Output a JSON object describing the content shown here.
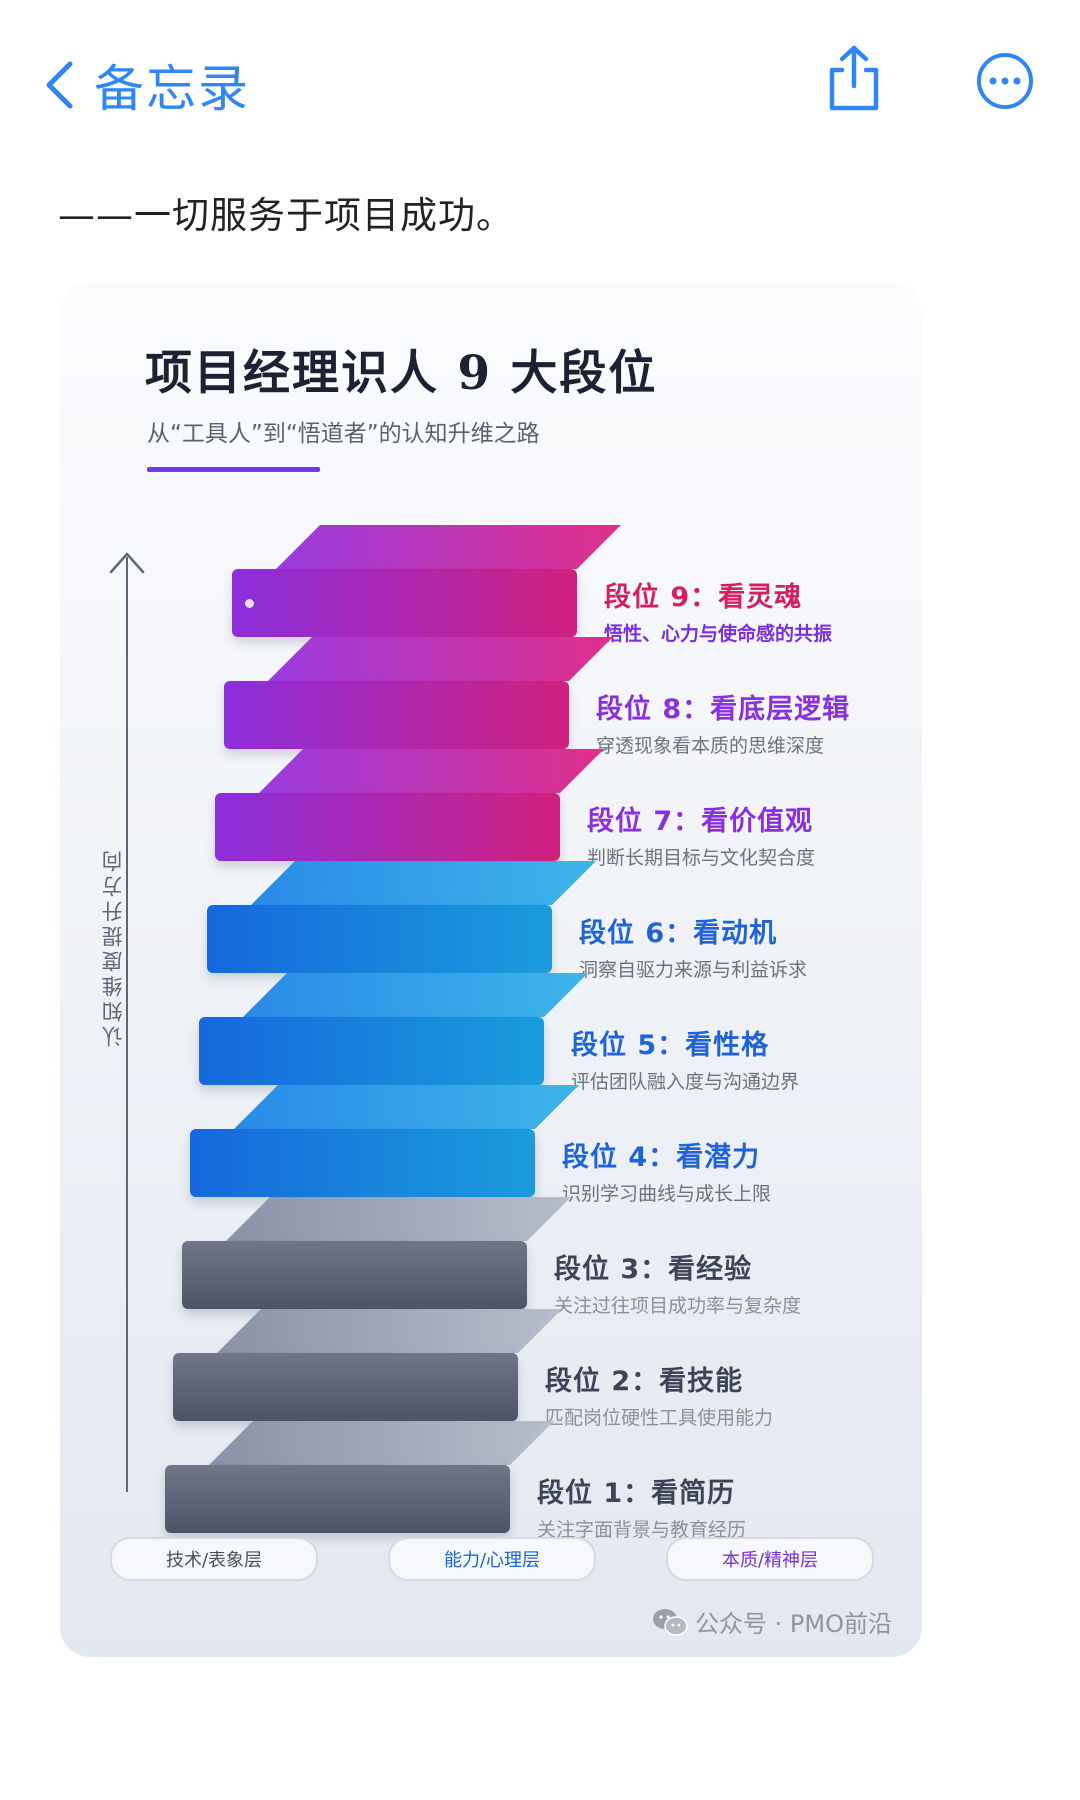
{
  "nav": {
    "back_label": "备忘录"
  },
  "note": {
    "text": "——一切服务于项目成功。"
  },
  "card": {
    "title": "项目经理识人 9 大段位",
    "subtitle": "从“工具人”到“悟道者”的认知升维之路",
    "axis_label": "认知维度提升方向",
    "steps": [
      {
        "title": "段位 9：看灵魂",
        "desc": "悟性、心力与使命感的共振",
        "tier": "purple",
        "title_color": "#d61f63",
        "desc_color": "#7a2fe0"
      },
      {
        "title": "段位 8：看底层逻辑",
        "desc": "穿透现象看本质的思维深度",
        "tier": "purple",
        "title_color": "#8a2fe0",
        "desc_color": "#6c7280"
      },
      {
        "title": "段位 7：看价值观",
        "desc": "判断长期目标与文化契合度",
        "tier": "purple",
        "title_color": "#8a2fe0",
        "desc_color": "#6c7280"
      },
      {
        "title": "段位 6：看动机",
        "desc": "洞察自驱力来源与利益诉求",
        "tier": "blue",
        "title_color": "#1e63d8",
        "desc_color": "#6c7280"
      },
      {
        "title": "段位 5：看性格",
        "desc": "评估团队融入度与沟通边界",
        "tier": "blue",
        "title_color": "#1e63d8",
        "desc_color": "#6c7280"
      },
      {
        "title": "段位 4：看潜力",
        "desc": "识别学习曲线与成长上限",
        "tier": "blue",
        "title_color": "#1e63d8",
        "desc_color": "#6c7280"
      },
      {
        "title": "段位 3：看经验",
        "desc": "关注过往项目成功率与复杂度",
        "tier": "gray",
        "title_color": "#3d4455",
        "desc_color": "#8a909c"
      },
      {
        "title": "段位 2：看技能",
        "desc": "匹配岗位硬性工具使用能力",
        "tier": "gray",
        "title_color": "#3d4455",
        "desc_color": "#8a909c"
      },
      {
        "title": "段位 1：看简历",
        "desc": "关注字面背景与教育经历",
        "tier": "gray",
        "title_color": "#3d4455",
        "desc_color": "#8a909c"
      }
    ],
    "legend": [
      {
        "label": "技术/表象层",
        "color": "#4a5060"
      },
      {
        "label": "能力/心理层",
        "color": "#1e63d8"
      },
      {
        "label": "本质/精神层",
        "color": "#7a2fe0"
      }
    ],
    "watermark": "公众号 · PMO前沿"
  }
}
